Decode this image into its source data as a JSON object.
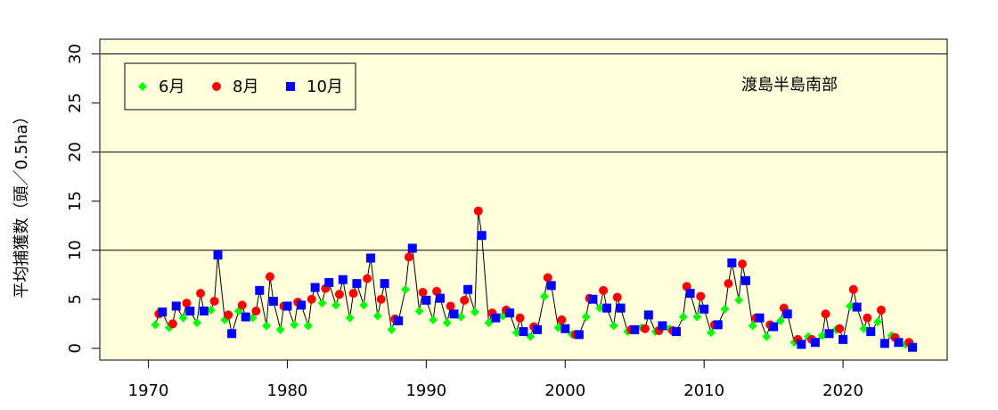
{
  "chart_data": {
    "type": "line",
    "ylabel": "平均捕獲数（頭／0.5ha）",
    "annotation": "渡島半島南部",
    "xlim": [
      1966.5,
      2027.5
    ],
    "ylim": [
      -1.2,
      31.5
    ],
    "xticks": [
      1970,
      1980,
      1990,
      2000,
      2010,
      2020
    ],
    "yticks": [
      0,
      5,
      10,
      15,
      20,
      25,
      30
    ],
    "hlines": [
      10,
      20,
      30
    ],
    "plot_background": "#ffffdc",
    "legend_position": "top-left",
    "series": [
      {
        "name": "6月",
        "color": "#00ff00",
        "marker": "diamond",
        "x": [
          1970.5,
          1971.5,
          1972.5,
          1973.5,
          1974.5,
          1975.5,
          1976.5,
          1977.5,
          1978.5,
          1979.5,
          1980.5,
          1981.5,
          1982.5,
          1983.5,
          1984.5,
          1985.5,
          1986.5,
          1987.5,
          1988.5,
          1989.5,
          1990.5,
          1991.5,
          1992.5,
          1993.5,
          1994.5,
          1995.5,
          1996.5,
          1997.5,
          1998.5,
          1999.5,
          2000.5,
          2001.5,
          2002.5,
          2003.5,
          2004.5,
          2005.5,
          2006.5,
          2007.5,
          2008.5,
          2009.5,
          2010.5,
          2011.5,
          2012.5,
          2013.5,
          2014.5,
          2015.5,
          2016.5,
          2017.5,
          2018.5,
          2019.5,
          2020.5,
          2021.5,
          2022.5,
          2023.5,
          2024.5
        ],
        "y": [
          2.4,
          2.1,
          3.1,
          2.6,
          3.9,
          2.9,
          3.8,
          3.1,
          2.3,
          1.9,
          2.4,
          2.3,
          4.6,
          4.4,
          3.1,
          4.4,
          3.3,
          1.9,
          6.0,
          3.8,
          2.9,
          2.6,
          3.2,
          3.7,
          2.6,
          3.3,
          1.6,
          1.2,
          5.3,
          2.1,
          1.4,
          3.2,
          4.1,
          2.3,
          1.7,
          2.1,
          1.7,
          2.0,
          3.2,
          3.2,
          1.6,
          4.0,
          4.9,
          2.3,
          1.2,
          2.8,
          0.6,
          1.2,
          1.3,
          1.9,
          4.3,
          2.0,
          2.7,
          1.3,
          0.4
        ]
      },
      {
        "name": "8月",
        "color": "#ff0000",
        "marker": "circle",
        "x": [
          1970.75,
          1971.75,
          1972.75,
          1973.75,
          1974.75,
          1975.75,
          1976.75,
          1977.75,
          1978.75,
          1979.75,
          1980.75,
          1981.75,
          1982.75,
          1983.75,
          1984.75,
          1985.75,
          1986.75,
          1987.75,
          1988.75,
          1989.75,
          1990.75,
          1991.75,
          1992.75,
          1993.75,
          1994.75,
          1995.75,
          1996.75,
          1997.75,
          1998.75,
          1999.75,
          2000.75,
          2001.75,
          2002.75,
          2003.75,
          2004.75,
          2005.75,
          2006.75,
          2007.75,
          2008.75,
          2009.75,
          2010.75,
          2011.75,
          2012.75,
          2013.75,
          2014.75,
          2015.75,
          2016.75,
          2017.75,
          2018.75,
          2019.75,
          2020.75,
          2021.75,
          2022.75,
          2023.75,
          2024.75
        ],
        "y": [
          3.5,
          2.5,
          4.6,
          5.6,
          4.8,
          3.4,
          4.4,
          3.8,
          7.3,
          4.3,
          4.7,
          5.0,
          6.1,
          5.5,
          5.6,
          7.1,
          5.0,
          3.0,
          9.3,
          5.7,
          5.8,
          4.3,
          4.9,
          14.0,
          3.6,
          3.9,
          3.1,
          2.2,
          7.2,
          2.9,
          1.4,
          5.1,
          5.9,
          5.2,
          1.9,
          2.0,
          1.8,
          1.8,
          6.3,
          5.3,
          2.4,
          6.6,
          8.6,
          3.1,
          2.4,
          4.1,
          0.9,
          0.9,
          3.5,
          2.0,
          6.0,
          3.1,
          3.9,
          1.1,
          0.6
        ]
      },
      {
        "name": "10月",
        "color": "#0000ff",
        "marker": "square",
        "x": [
          1971.0,
          1972.0,
          1973.0,
          1974.0,
          1975.0,
          1976.0,
          1977.0,
          1978.0,
          1979.0,
          1980.0,
          1981.0,
          1982.0,
          1983.0,
          1984.0,
          1985.0,
          1986.0,
          1987.0,
          1988.0,
          1989.0,
          1990.0,
          1991.0,
          1992.0,
          1993.0,
          1994.0,
          1995.0,
          1996.0,
          1997.0,
          1998.0,
          1999.0,
          2000.0,
          2001.0,
          2002.0,
          2003.0,
          2004.0,
          2005.0,
          2006.0,
          2007.0,
          2008.0,
          2009.0,
          2010.0,
          2011.0,
          2012.0,
          2013.0,
          2014.0,
          2015.0,
          2016.0,
          2017.0,
          2018.0,
          2019.0,
          2020.0,
          2021.0,
          2022.0,
          2023.0,
          2024.0,
          2025.0
        ],
        "y": [
          3.7,
          4.3,
          3.8,
          3.8,
          9.5,
          1.5,
          3.2,
          5.9,
          4.8,
          4.3,
          4.4,
          6.2,
          6.7,
          7.0,
          6.6,
          9.2,
          6.6,
          2.8,
          10.2,
          4.9,
          5.1,
          3.5,
          6.0,
          11.5,
          3.1,
          3.6,
          1.7,
          1.9,
          6.4,
          2.0,
          1.4,
          5.0,
          4.1,
          4.1,
          1.9,
          3.4,
          2.3,
          1.7,
          5.6,
          4.0,
          2.4,
          8.7,
          6.9,
          3.1,
          2.2,
          3.5,
          0.4,
          0.6,
          1.5,
          0.9,
          4.2,
          1.7,
          0.5,
          0.6,
          0.1
        ]
      }
    ]
  }
}
